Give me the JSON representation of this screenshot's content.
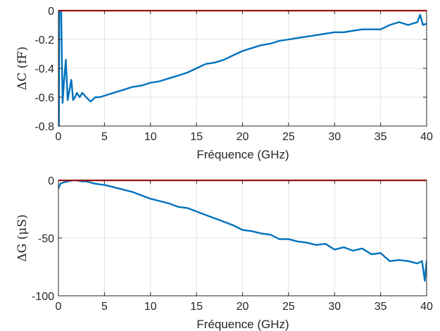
{
  "colors": {
    "measured": "#0072BD",
    "reference": "#FF0000",
    "axis": "#262626",
    "grid": "#e3e3e3"
  },
  "chart_data": [
    {
      "type": "line",
      "xlabel": "Fréquence (GHz)",
      "ylabel": "ΔC (fF)",
      "xlim": [
        0,
        40
      ],
      "ylim": [
        -0.8,
        0
      ],
      "grid": true,
      "xticks": [
        0,
        5,
        10,
        15,
        20,
        25,
        30,
        35,
        40
      ],
      "xtick_labels": [
        "0",
        "5",
        "10",
        "15",
        "20",
        "25",
        "30",
        "35",
        "40"
      ],
      "yticks": [
        0,
        -0.2,
        -0.4,
        -0.6,
        -0.8
      ],
      "ytick_labels": [
        "0",
        "-0.2",
        "-0.4",
        "-0.6",
        "-0.8"
      ],
      "series": [
        {
          "color": "#0072BD",
          "x": [
            0.05,
            0.1,
            0.3,
            0.45,
            0.6,
            0.8,
            1.0,
            1.2,
            1.4,
            1.6,
            1.8,
            2.0,
            2.3,
            2.6,
            3.0,
            3.5,
            4.0,
            4.5,
            5.0,
            6.0,
            7.0,
            8.0,
            9.0,
            10.0,
            11.0,
            12.0,
            13.0,
            14.0,
            15.0,
            16.0,
            17.0,
            18.0,
            19.0,
            20.0,
            21.0,
            22.0,
            23.0,
            24.0,
            25.0,
            26.0,
            27.0,
            28.0,
            29.0,
            30.0,
            31.0,
            32.0,
            33.0,
            34.0,
            35.0,
            36.0,
            37.0,
            38.0,
            39.0,
            39.3,
            39.6,
            40.0
          ],
          "y": [
            -0.8,
            0,
            0,
            -0.64,
            -0.5,
            -0.34,
            -0.62,
            -0.55,
            -0.48,
            -0.62,
            -0.6,
            -0.57,
            -0.6,
            -0.57,
            -0.6,
            -0.63,
            -0.6,
            -0.6,
            -0.59,
            -0.57,
            -0.55,
            -0.53,
            -0.52,
            -0.5,
            -0.49,
            -0.47,
            -0.45,
            -0.43,
            -0.4,
            -0.37,
            -0.36,
            -0.34,
            -0.31,
            -0.28,
            -0.26,
            -0.24,
            -0.23,
            -0.21,
            -0.2,
            -0.19,
            -0.18,
            -0.17,
            -0.16,
            -0.15,
            -0.15,
            -0.14,
            -0.13,
            -0.13,
            -0.13,
            -0.1,
            -0.08,
            -0.1,
            -0.08,
            -0.03,
            -0.1,
            -0.09
          ]
        },
        {
          "color": "#FF0000",
          "x": [
            0,
            40
          ],
          "y": [
            0,
            0
          ]
        }
      ]
    },
    {
      "type": "line",
      "xlabel": "Fréquence (GHz)",
      "ylabel": "ΔG (μS)",
      "xlim": [
        0,
        40
      ],
      "ylim": [
        -100,
        0
      ],
      "grid": true,
      "xticks": [
        0,
        5,
        10,
        15,
        20,
        25,
        30,
        35,
        40
      ],
      "xtick_labels": [
        "0",
        "5",
        "10",
        "15",
        "20",
        "25",
        "30",
        "35",
        "40"
      ],
      "yticks": [
        0,
        -50,
        -100
      ],
      "ytick_labels": [
        "0",
        "-50",
        "-100"
      ],
      "series": [
        {
          "color": "#0072BD",
          "x": [
            0.0,
            0.2,
            0.5,
            1.0,
            1.5,
            2.0,
            2.5,
            3.0,
            4.0,
            5.0,
            6.0,
            7.0,
            8.0,
            9.0,
            10.0,
            11.0,
            12.0,
            13.0,
            14.0,
            15.0,
            16.0,
            17.0,
            18.0,
            19.0,
            20.0,
            21.0,
            22.0,
            23.0,
            24.0,
            25.0,
            26.0,
            27.0,
            28.0,
            29.0,
            30.0,
            31.0,
            32.0,
            33.0,
            34.0,
            35.0,
            36.0,
            37.0,
            38.0,
            39.0,
            39.5,
            39.8,
            40.0
          ],
          "y": [
            -7,
            -3,
            -2,
            -1,
            0,
            0,
            -1,
            -1,
            -3,
            -4,
            -6,
            -8,
            -10,
            -13,
            -16,
            -18,
            -20,
            -23,
            -24,
            -27,
            -30,
            -33,
            -36,
            -39,
            -43,
            -44,
            -46,
            -47,
            -51,
            -51,
            -53,
            -54,
            -56,
            -55,
            -60,
            -58,
            -61,
            -59,
            -64,
            -63,
            -70,
            -69,
            -70,
            -72,
            -70,
            -87,
            -70
          ]
        },
        {
          "color": "#FF0000",
          "x": [
            0,
            40
          ],
          "y": [
            0,
            0
          ]
        }
      ]
    }
  ]
}
